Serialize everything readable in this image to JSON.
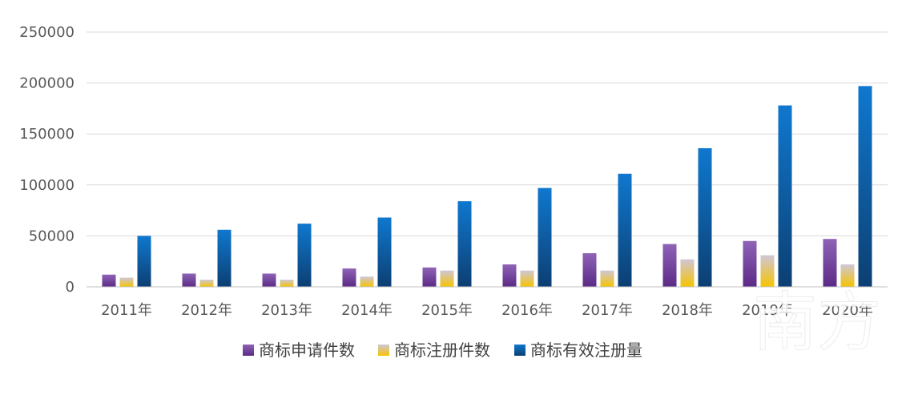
{
  "chart_data": {
    "type": "bar",
    "categories": [
      "2011年",
      "2012年",
      "2013年",
      "2014年",
      "2015年",
      "2016年",
      "2017年",
      "2018年",
      "2019年",
      "2020年"
    ],
    "series": [
      {
        "name": "商标申请件数",
        "values": [
          12000,
          13000,
          13000,
          18000,
          19000,
          22000,
          33000,
          42000,
          45000,
          47000
        ]
      },
      {
        "name": "商标注册件数",
        "values": [
          9000,
          7000,
          7000,
          10000,
          16000,
          16000,
          16000,
          27000,
          31000,
          22000
        ]
      },
      {
        "name": "商标有效注册量",
        "values": [
          50000,
          56000,
          62000,
          68000,
          84000,
          97000,
          111000,
          136000,
          178000,
          197000
        ]
      }
    ],
    "ylim": [
      0,
      250000
    ],
    "yticks": [
      "0",
      "50000",
      "100000",
      "150000",
      "200000",
      "250000"
    ],
    "grid": true,
    "legend_position": "bottom"
  },
  "colors": {
    "series": [
      "#7a3fa0",
      "#f2c21a",
      "#0a72c8"
    ],
    "series_light": [
      "#8f63b6",
      "#cfc6d8",
      "#0f78cf"
    ],
    "series_dark": [
      "#5c2a86",
      "#f6c400",
      "#0c3f72"
    ],
    "grid": "#d9d9d9",
    "axis": "#bfbfbf"
  },
  "watermark": {
    "text": "南方"
  }
}
